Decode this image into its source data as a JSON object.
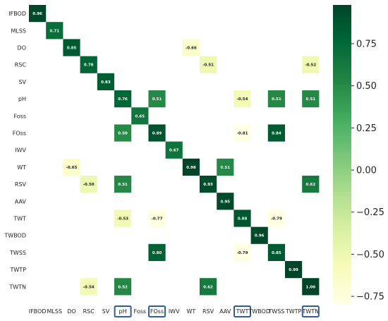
{
  "chart_data": {
    "type": "heatmap",
    "labels": [
      "IFBOD",
      "MLSS",
      "DO",
      "RSC",
      "SV",
      "pH",
      "Foss",
      "FOss",
      "IWV",
      "WT",
      "RSV",
      "AAV",
      "TWT",
      "TWBOD",
      "TWSS",
      "TWTP",
      "TWTN"
    ],
    "highlighted_labels": [
      "pH",
      "FOss",
      "TWT",
      "TWTN"
    ],
    "cells": [
      {
        "row": "IFBOD",
        "col": "IFBOD",
        "value": 0.96
      },
      {
        "row": "MLSS",
        "col": "MLSS",
        "value": 0.71
      },
      {
        "row": "DO",
        "col": "DO",
        "value": 0.85
      },
      {
        "row": "DO",
        "col": "WT",
        "value": -0.66
      },
      {
        "row": "RSC",
        "col": "RSC",
        "value": 0.78
      },
      {
        "row": "RSC",
        "col": "RSV",
        "value": -0.51
      },
      {
        "row": "RSC",
        "col": "TWTN",
        "value": -0.52
      },
      {
        "row": "SV",
        "col": "SV",
        "value": 0.83
      },
      {
        "row": "pH",
        "col": "pH",
        "value": 0.76
      },
      {
        "row": "pH",
        "col": "FOss",
        "value": 0.51
      },
      {
        "row": "pH",
        "col": "TWT",
        "value": -0.54
      },
      {
        "row": "pH",
        "col": "TWSS",
        "value": 0.51
      },
      {
        "row": "pH",
        "col": "TWTN",
        "value": 0.51
      },
      {
        "row": "Foss",
        "col": "Foss",
        "value": 0.65
      },
      {
        "row": "FOss",
        "col": "pH",
        "value": 0.5
      },
      {
        "row": "FOss",
        "col": "FOss",
        "value": 0.89
      },
      {
        "row": "FOss",
        "col": "TWT",
        "value": -0.81
      },
      {
        "row": "FOss",
        "col": "TWSS",
        "value": 0.84
      },
      {
        "row": "IWV",
        "col": "IWV",
        "value": 0.67
      },
      {
        "row": "WT",
        "col": "DO",
        "value": -0.65
      },
      {
        "row": "WT",
        "col": "WT",
        "value": 0.98
      },
      {
        "row": "WT",
        "col": "AAV",
        "value": 0.51
      },
      {
        "row": "RSV",
        "col": "RSC",
        "value": -0.5
      },
      {
        "row": "RSV",
        "col": "pH",
        "value": 0.51
      },
      {
        "row": "RSV",
        "col": "RSV",
        "value": 0.93
      },
      {
        "row": "RSV",
        "col": "TWTN",
        "value": 0.62
      },
      {
        "row": "AAV",
        "col": "AAV",
        "value": 0.95
      },
      {
        "row": "TWT",
        "col": "pH",
        "value": -0.53
      },
      {
        "row": "TWT",
        "col": "FOss",
        "value": -0.77
      },
      {
        "row": "TWT",
        "col": "TWT",
        "value": 0.88
      },
      {
        "row": "TWT",
        "col": "TWSS",
        "value": -0.79
      },
      {
        "row": "TWBOD",
        "col": "TWBOD",
        "value": 0.96
      },
      {
        "row": "TWSS",
        "col": "FOss",
        "value": 0.8
      },
      {
        "row": "TWSS",
        "col": "TWT",
        "value": -0.79
      },
      {
        "row": "TWSS",
        "col": "TWSS",
        "value": 0.85
      },
      {
        "row": "TWTP",
        "col": "TWTP",
        "value": 0.99
      },
      {
        "row": "TWTN",
        "col": "RSC",
        "value": -0.54
      },
      {
        "row": "TWTN",
        "col": "pH",
        "value": 0.52
      },
      {
        "row": "TWTN",
        "col": "RSV",
        "value": 0.62
      },
      {
        "row": "TWTN",
        "col": "TWTN",
        "value": 1.0
      }
    ],
    "colorbar": {
      "min": -0.8,
      "max": 0.98,
      "ticks": [
        0.75,
        0.5,
        0.25,
        0.0,
        -0.25,
        -0.5,
        -0.75
      ],
      "tick_labels": [
        "0.75",
        "0.50",
        "0.25",
        "0.00",
        "−0.25",
        "−0.50",
        "−0.75"
      ],
      "colormap": "YlGn",
      "placement": "right"
    },
    "highlight_color": "#2f5d9e",
    "title": "",
    "xlabel": "",
    "ylabel": ""
  }
}
